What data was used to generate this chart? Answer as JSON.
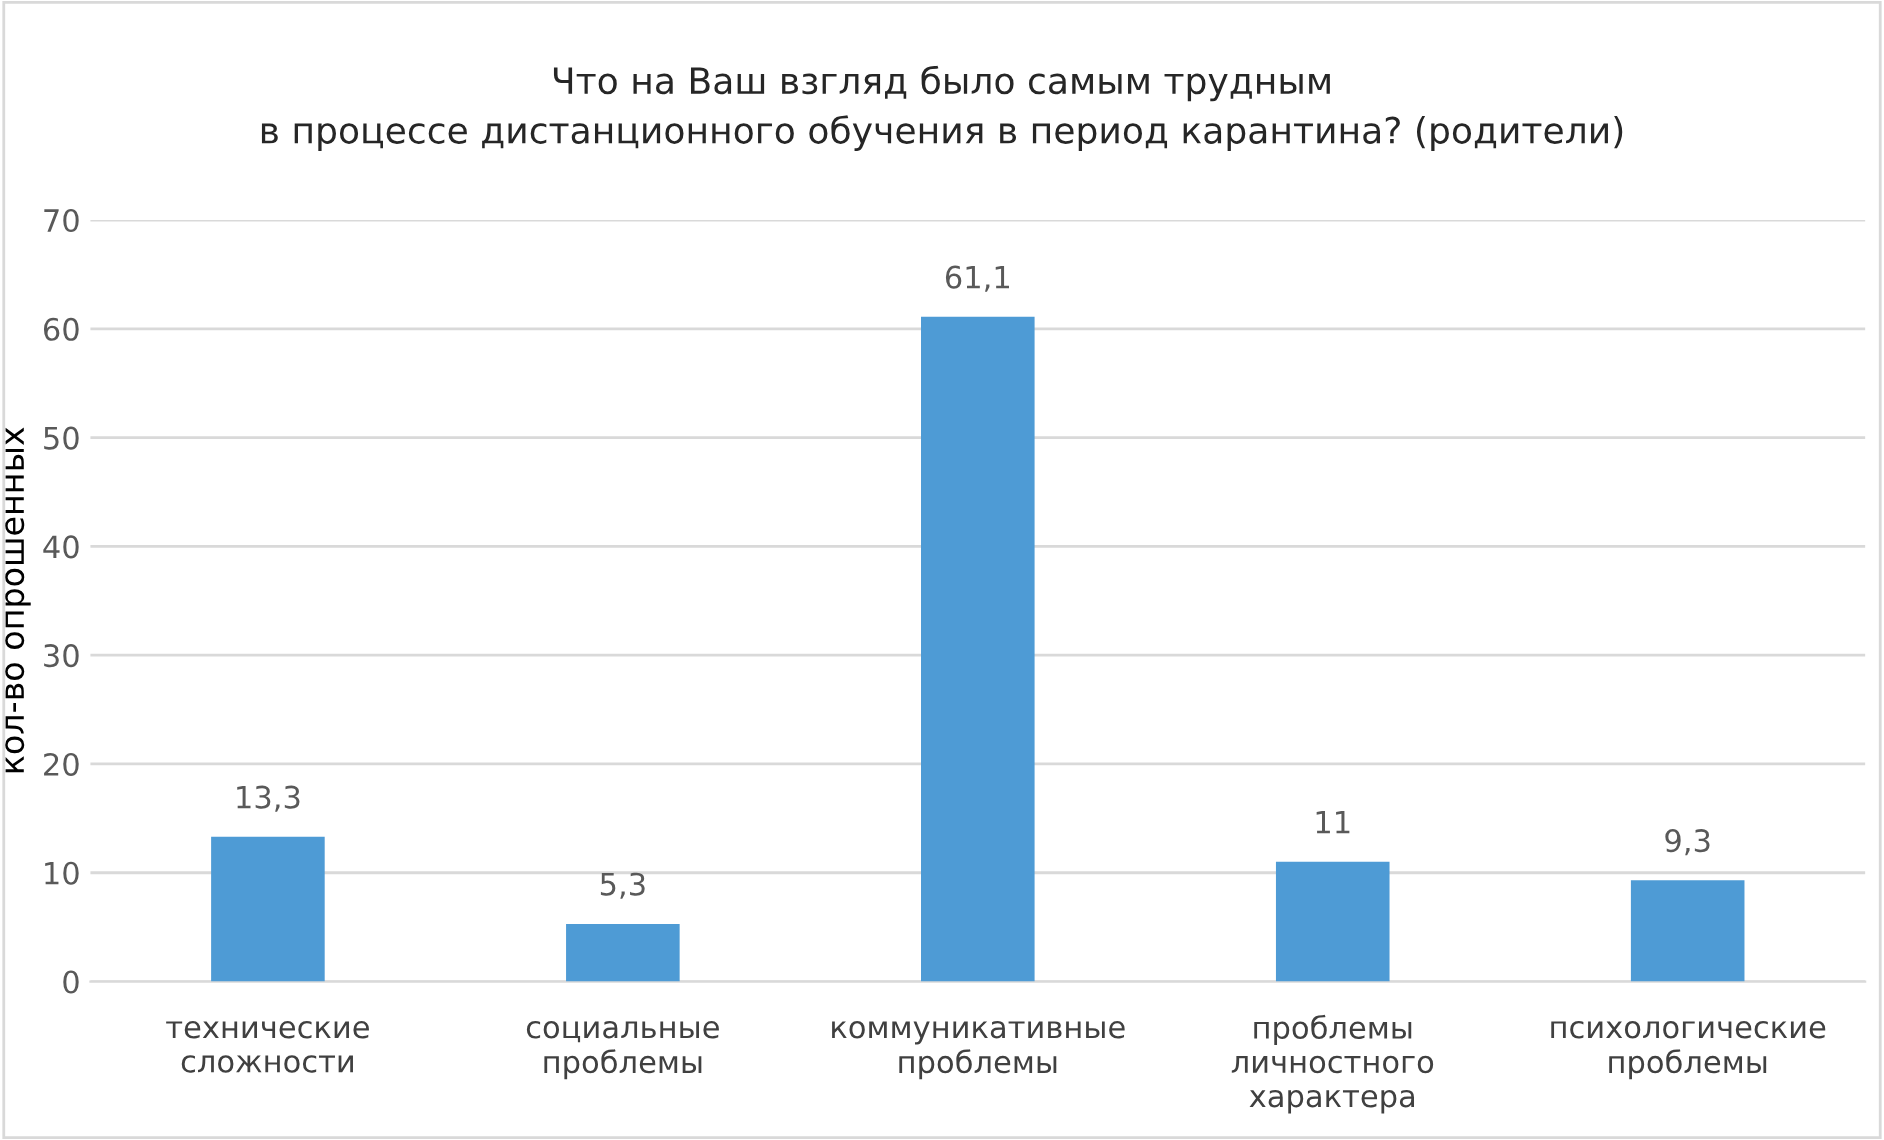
{
  "chart_data": {
    "type": "bar",
    "title": "Что на Ваш взгляд было самым трудным\nв процессе дистанционного обучения в период карантина? (родители)",
    "ylabel": "кол-во опрошенных",
    "categories": [
      "технические\nсложности",
      "социальные\nпроблемы",
      "коммуникативные\nпроблемы",
      "проблемы\nличностного\nхарактера",
      "психологические\nпроблемы"
    ],
    "values": [
      13.3,
      5.3,
      61.1,
      11,
      9.3
    ],
    "value_labels": [
      "13,3",
      "5,3",
      "61,1",
      "11",
      "9,3"
    ],
    "color": "#4e9bd5",
    "ylim": [
      0,
      70
    ],
    "yticks": [
      0,
      10,
      20,
      30,
      40,
      50,
      60,
      70
    ],
    "grid": "y",
    "legend": false
  }
}
